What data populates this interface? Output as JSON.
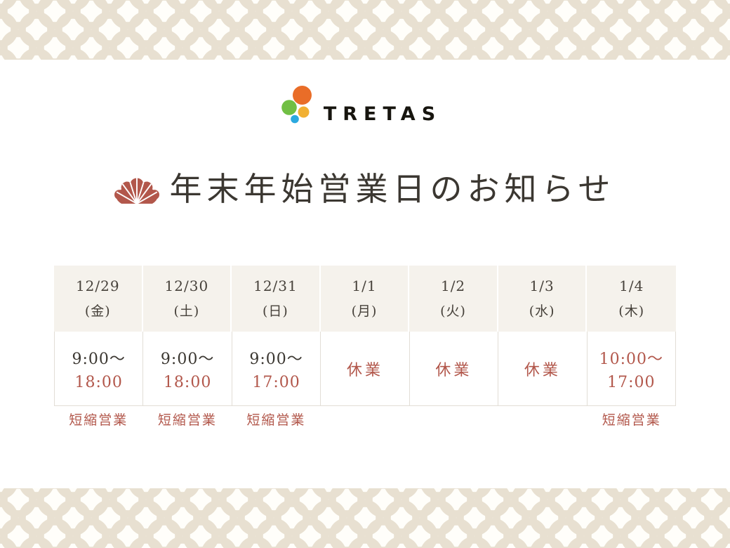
{
  "page": {
    "background": "#ffffff",
    "pattern_color": "#e8e0d1",
    "accent_color": "#b2574b",
    "text_color": "#3b3731"
  },
  "logo": {
    "name": "TRETAS",
    "dot_colors": {
      "orange": "#e96d28",
      "green": "#71bf44",
      "amber": "#f1b033",
      "blue": "#2ba9df"
    }
  },
  "title": {
    "text": "年末年始営業日のお知らせ"
  },
  "schedule": {
    "header_bg": "#f5f2ec",
    "border_color": "#e2ded6",
    "columns": [
      {
        "date": "12/29",
        "weekday": "(金)",
        "closed": false,
        "lines": [
          {
            "text": "9:00〜",
            "accent": false
          },
          {
            "text": "18:00",
            "accent": true
          }
        ],
        "note": "短縮営業"
      },
      {
        "date": "12/30",
        "weekday": "(土)",
        "closed": false,
        "lines": [
          {
            "text": "9:00〜",
            "accent": false
          },
          {
            "text": "18:00",
            "accent": true
          }
        ],
        "note": "短縮営業"
      },
      {
        "date": "12/31",
        "weekday": "(日)",
        "closed": false,
        "lines": [
          {
            "text": "9:00〜",
            "accent": false
          },
          {
            "text": "17:00",
            "accent": true
          }
        ],
        "note": "短縮営業"
      },
      {
        "date": "1/1",
        "weekday": "(月)",
        "closed": true,
        "lines": [
          {
            "text": "休業",
            "accent": true
          }
        ],
        "note": ""
      },
      {
        "date": "1/2",
        "weekday": "(火)",
        "closed": true,
        "lines": [
          {
            "text": "休業",
            "accent": true
          }
        ],
        "note": ""
      },
      {
        "date": "1/3",
        "weekday": "(水)",
        "closed": true,
        "lines": [
          {
            "text": "休業",
            "accent": true
          }
        ],
        "note": ""
      },
      {
        "date": "1/4",
        "weekday": "(木)",
        "closed": false,
        "lines": [
          {
            "text": "10:00〜",
            "accent": true
          },
          {
            "text": "17:00",
            "accent": true
          }
        ],
        "note": "短縮営業"
      }
    ]
  }
}
